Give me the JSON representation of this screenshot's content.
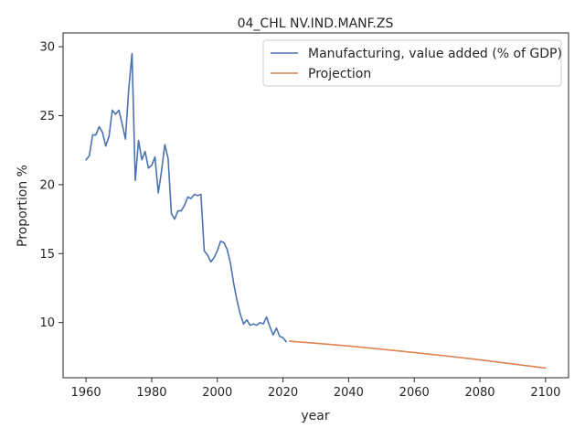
{
  "chart_data": {
    "type": "line",
    "title": "04_CHL NV.IND.MANF.ZS",
    "xlabel": "year",
    "ylabel": "Proportion %",
    "xlim": [
      1953.0,
      2107.0
    ],
    "ylim": [
      6.0,
      31.0
    ],
    "xticks": [
      1960,
      1980,
      2000,
      2020,
      2040,
      2060,
      2080,
      2100
    ],
    "yticks": [
      10,
      15,
      20,
      25,
      30
    ],
    "grid": false,
    "legend_position": "upper right",
    "series": [
      {
        "name": "Manufacturing, value added (% of GDP)",
        "color": "#4c72b0",
        "x": [
          1960,
          1961,
          1962,
          1963,
          1964,
          1965,
          1966,
          1967,
          1968,
          1969,
          1970,
          1971,
          1972,
          1973,
          1974,
          1975,
          1976,
          1977,
          1978,
          1979,
          1980,
          1981,
          1982,
          1983,
          1984,
          1985,
          1986,
          1987,
          1988,
          1989,
          1990,
          1991,
          1992,
          1993,
          1994,
          1995,
          1996,
          1997,
          1998,
          1999,
          2000,
          2001,
          2002,
          2003,
          2004,
          2005,
          2006,
          2007,
          2008,
          2009,
          2010,
          2011,
          2012,
          2013,
          2014,
          2015,
          2016,
          2017,
          2018,
          2019,
          2020,
          2021
        ],
        "y": [
          21.8,
          22.1,
          23.6,
          23.6,
          24.2,
          23.8,
          22.8,
          23.5,
          25.4,
          25.1,
          25.4,
          24.4,
          23.3,
          26.9,
          29.5,
          20.3,
          23.2,
          21.8,
          22.4,
          21.2,
          21.4,
          22.0,
          19.4,
          21.0,
          22.9,
          21.9,
          17.9,
          17.5,
          18.1,
          18.1,
          18.5,
          19.1,
          19.0,
          19.3,
          19.2,
          19.3,
          15.2,
          14.9,
          14.4,
          14.7,
          15.2,
          15.9,
          15.8,
          15.3,
          14.3,
          12.8,
          11.6,
          10.6,
          9.9,
          10.2,
          9.8,
          9.9,
          9.8,
          10.0,
          9.9,
          10.4,
          9.7,
          9.1,
          9.6,
          9.0,
          8.9,
          8.6
        ]
      },
      {
        "name": "Projection",
        "color": "#dd8452",
        "x": [
          2022,
          2030,
          2040,
          2050,
          2060,
          2070,
          2080,
          2090,
          2100
        ],
        "y": [
          8.65,
          8.5,
          8.3,
          8.07,
          7.83,
          7.57,
          7.3,
          7.0,
          6.7
        ]
      }
    ]
  }
}
